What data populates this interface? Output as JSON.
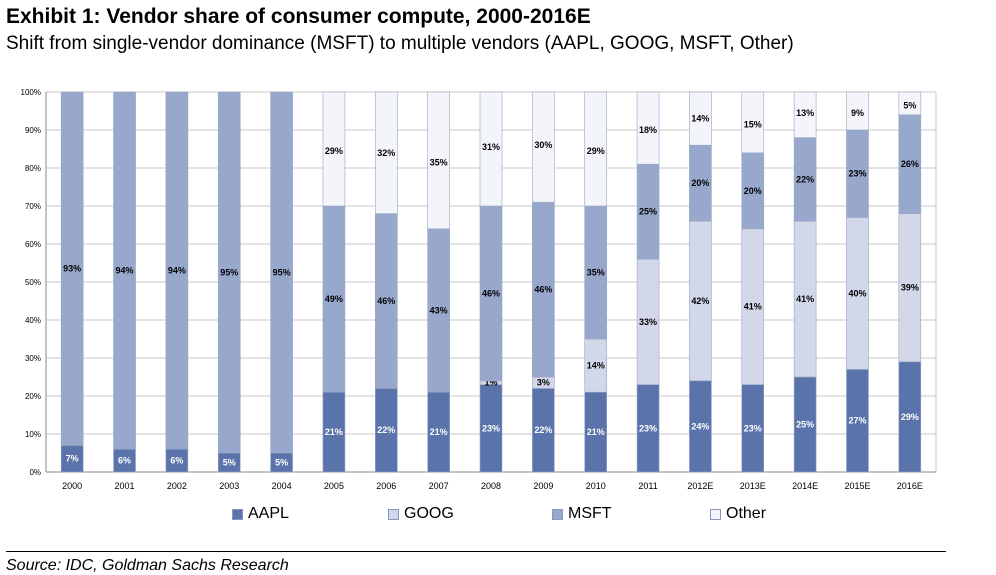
{
  "header": {
    "title": "Exhibit 1: Vendor share of consumer compute, 2000-2016E",
    "subtitle": "Shift from single-vendor dominance (MSFT) to multiple vendors (AAPL, GOOG, MSFT, Other)"
  },
  "source": "Source: IDC, Goldman Sachs Research",
  "colors": {
    "AAPL": "#5a73aa",
    "GOOG": "#d2d8e9",
    "MSFT": "#98a8cd",
    "Other": "#f3f5fb",
    "grid": "#c8c8c8"
  },
  "chart_data": {
    "type": "bar",
    "stacked": true,
    "title": "Exhibit 1: Vendor share of consumer compute, 2000-2016E",
    "subtitle": "Shift from single-vendor dominance (MSFT) to multiple vendors (AAPL, GOOG, MSFT, Other)",
    "xlabel": "",
    "ylabel": "",
    "ylim": [
      0,
      100
    ],
    "yticks": [
      "0%",
      "10%",
      "20%",
      "30%",
      "40%",
      "50%",
      "60%",
      "70%",
      "80%",
      "90%",
      "100%"
    ],
    "grid": true,
    "legend_position": "bottom",
    "categories": [
      "2000",
      "2001",
      "2002",
      "2003",
      "2004",
      "2005",
      "2006",
      "2007",
      "2008",
      "2009",
      "2010",
      "2011",
      "2012E",
      "2013E",
      "2014E",
      "2015E",
      "2016E"
    ],
    "series": [
      {
        "name": "AAPL",
        "values": [
          7,
          6,
          6,
          5,
          5,
          21,
          22,
          21,
          23,
          22,
          21,
          23,
          24,
          23,
          25,
          27,
          29
        ],
        "labels": [
          "7%",
          "6%",
          "6%",
          "5%",
          "5%",
          "21%",
          "22%",
          "21%",
          "23%",
          "22%",
          "21%",
          "23%",
          "24%",
          "23%",
          "25%",
          "27%",
          "29%"
        ]
      },
      {
        "name": "GOOG",
        "values": [
          0,
          0,
          0,
          0,
          0,
          0,
          0,
          0,
          1,
          3,
          14,
          33,
          42,
          41,
          41,
          40,
          39
        ],
        "labels": [
          "",
          "",
          "",
          "",
          "",
          "",
          "",
          "",
          "1%",
          "3%",
          "14%",
          "33%",
          "42%",
          "41%",
          "41%",
          "40%",
          "39%"
        ]
      },
      {
        "name": "MSFT",
        "values": [
          93,
          94,
          94,
          95,
          95,
          49,
          46,
          43,
          46,
          46,
          35,
          25,
          20,
          20,
          22,
          23,
          26
        ],
        "labels": [
          "93%",
          "94%",
          "94%",
          "95%",
          "95%",
          "49%",
          "46%",
          "43%",
          "46%",
          "46%",
          "35%",
          "25%",
          "20%",
          "20%",
          "22%",
          "23%",
          "26%"
        ]
      },
      {
        "name": "Other",
        "values": [
          0,
          0,
          0,
          0,
          0,
          29,
          32,
          35,
          31,
          30,
          29,
          18,
          14,
          15,
          13,
          9,
          5
        ],
        "labels": [
          "",
          "",
          "",
          "",
          "",
          "29%",
          "32%",
          "35%",
          "31%",
          "30%",
          "29%",
          "18%",
          "14%",
          "15%",
          "13%",
          "9%",
          "5%"
        ]
      }
    ]
  }
}
